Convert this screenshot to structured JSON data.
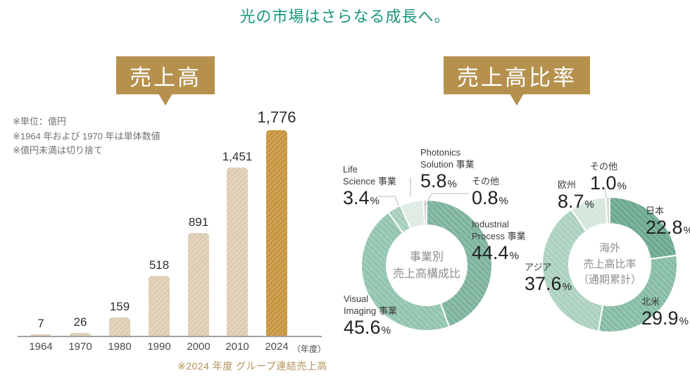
{
  "page_title": "光の市場はさらなる成長へ。",
  "percent_sign": "%",
  "colors": {
    "title_teal": "#17967c",
    "badge_gold": "#b6914e",
    "bar_beige": "#ddcbb0",
    "bar_highlight_gold": "#c6943c"
  },
  "sales_section": {
    "badge_label": "売上高",
    "notes": [
      "※単位：億円",
      "※1964 年および 1970 年は単体数値",
      "※億円未満は切り捨て"
    ],
    "axis_unit": "（年度）",
    "footnote": "※2024 年度 グループ連結売上高"
  },
  "ratio_section": {
    "badge_label": "売上高比率"
  },
  "chart_data": [
    {
      "type": "bar",
      "title": "売上高",
      "unit": "億円",
      "categories": [
        "1964",
        "1970",
        "1980",
        "1990",
        "2000",
        "2010",
        "2024"
      ],
      "values": [
        7,
        26,
        159,
        518,
        891,
        1451,
        1776
      ],
      "value_labels": [
        "7",
        "26",
        "159",
        "518",
        "891",
        "1,451",
        "1,776"
      ],
      "xlabel": "年度",
      "ylim": [
        0,
        1776
      ],
      "highlight_index": 6,
      "bar_color": "#ddcbb0",
      "highlight_color": "#c6943c",
      "grid": false
    },
    {
      "type": "donut",
      "title": "事業別売上高構成比",
      "center_lines": [
        "事業別",
        "売上高構成比"
      ],
      "segments": [
        {
          "name": "Industrial Process 事業",
          "label_lines": [
            "Industrial",
            "Process 事業"
          ],
          "value": 44.4,
          "value_label": "44.4",
          "color": "#7ab19b"
        },
        {
          "name": "Visual Imaging 事業",
          "label_lines": [
            "Visual",
            "Imaging 事業"
          ],
          "value": 45.6,
          "value_label": "45.6",
          "color": "#90c3ad"
        },
        {
          "name": "Life Science 事業",
          "label_lines": [
            "Life",
            "Science 事業"
          ],
          "value": 3.4,
          "value_label": "3.4",
          "color": "#a3cdb9"
        },
        {
          "name": "Photonics Solution 事業",
          "label_lines": [
            "Photonics",
            "Solution 事業"
          ],
          "value": 5.8,
          "value_label": "5.8",
          "color": "#dcebe2"
        },
        {
          "name": "その他",
          "label_lines": [
            "その他"
          ],
          "value": 0.8,
          "value_label": "0.8",
          "color": "#c9c9c9"
        }
      ]
    },
    {
      "type": "donut",
      "title": "海外売上高比率（通期累計）",
      "center_lines": [
        "海外",
        "売上高比率",
        "（通期累計）"
      ],
      "segments": [
        {
          "name": "日本",
          "label_lines": [
            "日本"
          ],
          "value": 22.8,
          "value_label": "22.8",
          "color": "#69a78d"
        },
        {
          "name": "北米",
          "label_lines": [
            "北米"
          ],
          "value": 29.9,
          "value_label": "29.9",
          "color": "#83bba2"
        },
        {
          "name": "アジア",
          "label_lines": [
            "アジア"
          ],
          "value": 37.6,
          "value_label": "37.6",
          "color": "#aad0be"
        },
        {
          "name": "欧州",
          "label_lines": [
            "欧州"
          ],
          "value": 8.7,
          "value_label": "8.7",
          "color": "#d4e6db"
        },
        {
          "name": "その他",
          "label_lines": [
            "その他"
          ],
          "value": 1.0,
          "value_label": "1.0",
          "color": "#d6dbd7"
        }
      ]
    }
  ]
}
